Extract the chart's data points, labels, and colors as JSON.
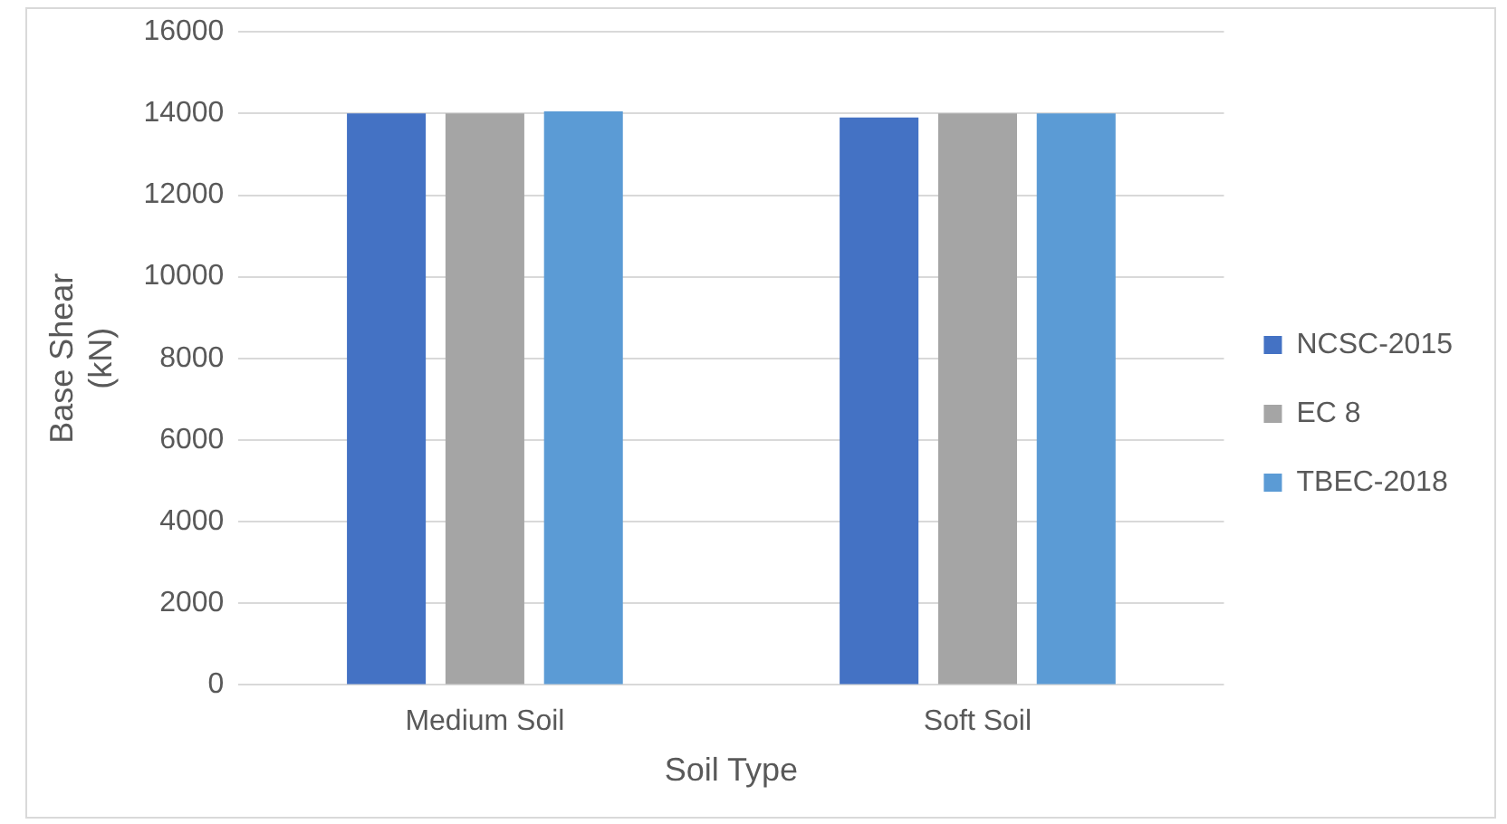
{
  "chart_data": {
    "type": "bar",
    "xlabel": "Soil Type",
    "ylabel": "Base Shear (kN)",
    "categories": [
      "Medium Soil",
      "Soft Soil"
    ],
    "series": [
      {
        "name": "NCSC-2015",
        "color": "#4472c4",
        "values": [
          14000,
          13900
        ]
      },
      {
        "name": "EC 8",
        "color": "#a5a5a5",
        "values": [
          14000,
          14000
        ]
      },
      {
        "name": "TBEC-2018",
        "color": "#5b9bd5",
        "values": [
          14050,
          14000
        ]
      }
    ],
    "ylim": [
      0,
      16000
    ],
    "yticks": [
      0,
      2000,
      4000,
      6000,
      8000,
      10000,
      12000,
      14000,
      16000
    ],
    "grid": "y",
    "legend": "right"
  }
}
